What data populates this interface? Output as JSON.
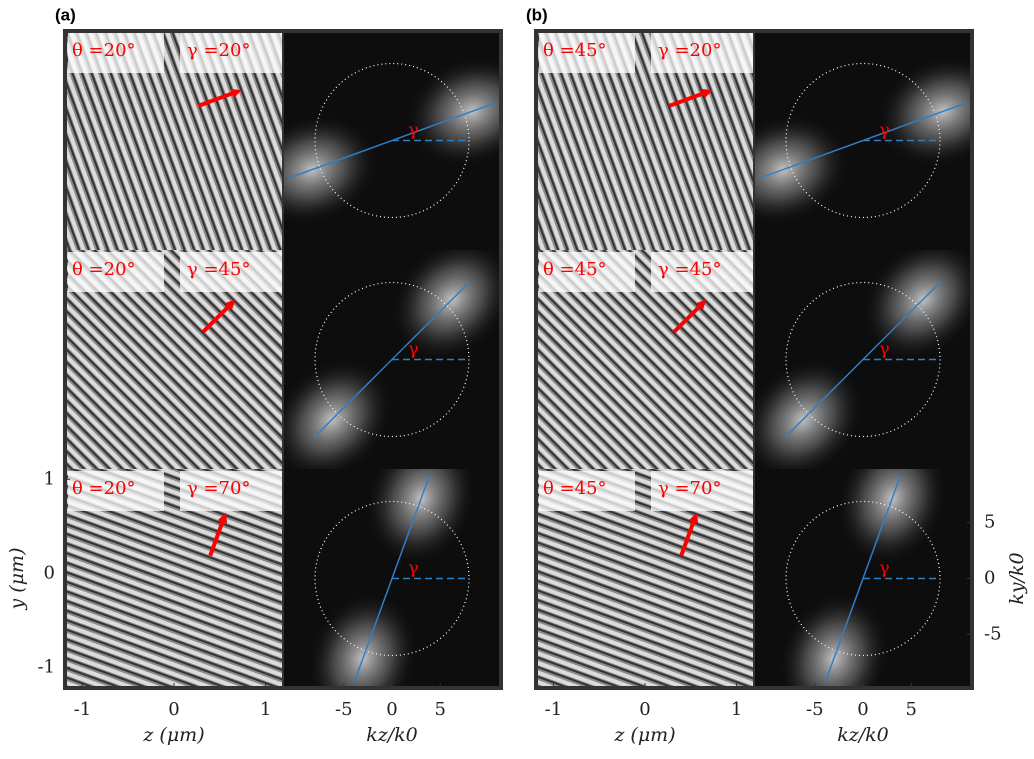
{
  "panels": [
    {
      "label": "(a)",
      "rows": [
        {
          "theta": "θ =20°",
          "gamma_label": "γ =20°",
          "gamma": 20
        },
        {
          "theta": "θ =20°",
          "gamma_label": "γ =45°",
          "gamma": 45
        },
        {
          "theta": "θ =20°",
          "gamma_label": "γ =70°",
          "gamma": 70
        }
      ]
    },
    {
      "label": "(b)",
      "rows": [
        {
          "theta": "θ =45°",
          "gamma_label": "γ =20°",
          "gamma": 20
        },
        {
          "theta": "θ =45°",
          "gamma_label": "γ =45°",
          "gamma": 45
        },
        {
          "theta": "θ =45°",
          "gamma_label": "γ =70°",
          "gamma": 70
        }
      ]
    }
  ],
  "axes": {
    "z_label": "z (μm)",
    "k_label": "kz/k0",
    "y_label": "y (μm)",
    "ky_label": "ky/k0",
    "gamma_mark": "γ",
    "zlim": [
      -1.19,
      1.19
    ],
    "zticks": [
      -1,
      0,
      1
    ],
    "ylim": [
      -1.22,
      1.11
    ],
    "yticks": [
      1,
      0,
      -1
    ],
    "kzlim": [
      -11.3,
      11.3
    ],
    "kzticks": [
      -5,
      0,
      5
    ],
    "kylim": [
      -9.8,
      9.8
    ],
    "kyticks": [
      5,
      0,
      -5
    ]
  }
}
